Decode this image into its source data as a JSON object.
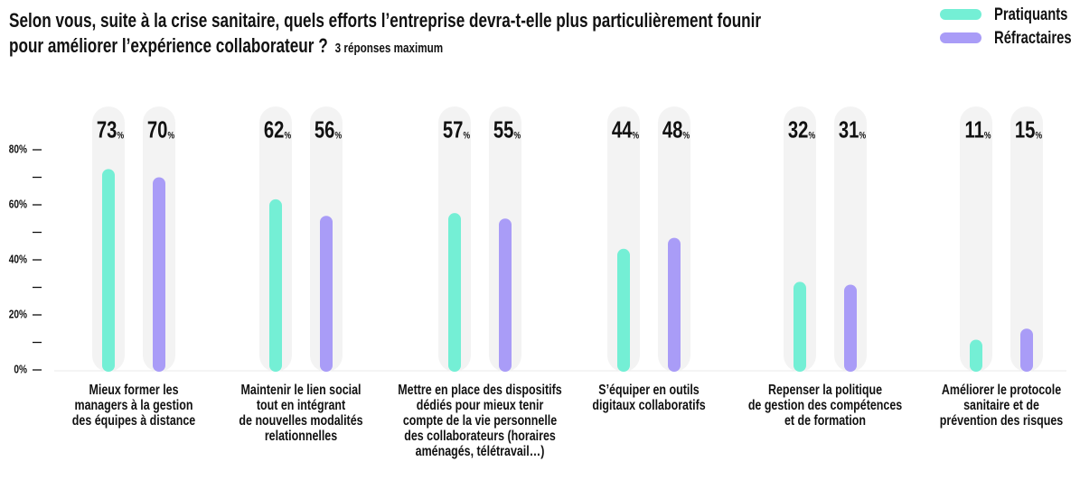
{
  "chart_data": {
    "type": "bar",
    "title": [
      "Selon vous, suite à la crise sanitaire, quels efforts l’entreprise devra-t-elle plus particulièrement founir",
      "pour améliorer l’expérience collaborateur ?"
    ],
    "subtitle": "3 réponses maximum",
    "categories": [
      [
        "Mieux former les",
        "managers à la gestion",
        "des équipes à distance"
      ],
      [
        "Maintenir le lien social",
        "tout en intégrant",
        "de nouvelles modalités",
        "relationnelles"
      ],
      [
        "Mettre en place des dispositifs",
        "dédiés pour mieux tenir",
        "compte de la vie personnelle",
        "des collaborateurs (horaires",
        "aménagés, télétravail…)"
      ],
      [
        "S’équiper en outils",
        "digitaux collaboratifs"
      ],
      [
        "Repenser la politique",
        "de gestion des compétences",
        "et de formation"
      ],
      [
        "Améliorer le protocole",
        "sanitaire et de",
        "prévention des risques"
      ]
    ],
    "series": [
      {
        "name": "Pratiquants",
        "color": "#74efd5",
        "values": [
          73,
          62,
          57,
          44,
          32,
          11
        ],
        "value_labels": [
          "73%",
          "62%",
          "57%",
          "44%",
          "32%",
          "11%"
        ]
      },
      {
        "name": "Réfractaires",
        "color": "#a99cf7",
        "values": [
          70,
          56,
          55,
          48,
          31,
          15
        ],
        "value_labels": [
          "70%",
          "56%",
          "55%",
          "48%",
          "31%",
          "15%"
        ]
      }
    ],
    "ylim": [
      0,
      80
    ],
    "yticks": [
      {
        "value": 0,
        "label": "0%"
      },
      {
        "value": 20,
        "label": "20%"
      },
      {
        "value": 40,
        "label": "40%"
      },
      {
        "value": 60,
        "label": "60%"
      },
      {
        "value": 80,
        "label": "80%"
      }
    ],
    "minor_yticks": [
      10,
      30,
      50,
      70
    ],
    "legend": "top-right"
  }
}
